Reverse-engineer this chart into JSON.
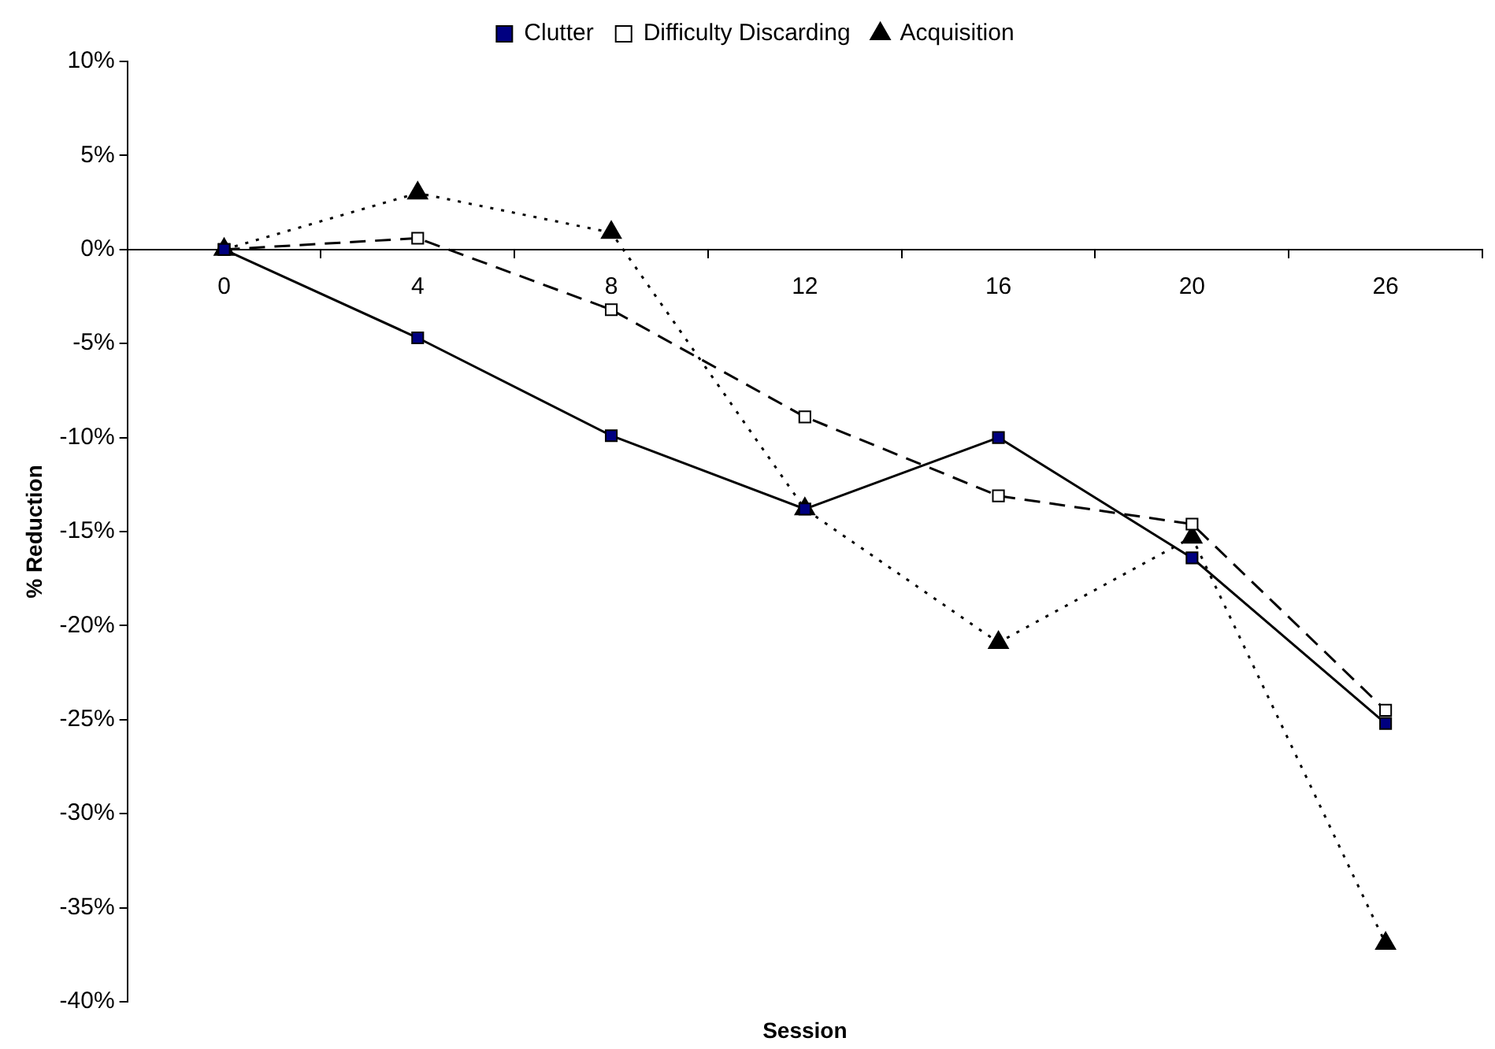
{
  "chart_data": {
    "type": "line",
    "xlabel": "Session",
    "ylabel": "% Reduction",
    "categories": [
      "0",
      "4",
      "8",
      "12",
      "16",
      "20",
      "26"
    ],
    "series": [
      {
        "name": "Clutter",
        "color": "#000080",
        "marker": "square",
        "line_style": "solid",
        "values": [
          0,
          -4.7,
          -9.9,
          -13.8,
          -10.0,
          -16.4,
          -25.2
        ]
      },
      {
        "name": "Difficulty Discarding",
        "color": "#ffffff",
        "marker": "square",
        "line_style": "dashed",
        "values": [
          0,
          0.6,
          -3.2,
          -8.9,
          -13.1,
          -14.6,
          -24.5
        ]
      },
      {
        "name": "Acquisition",
        "color": "#000000",
        "marker": "triangle",
        "line_style": "dotted",
        "values": [
          0,
          3.0,
          0.9,
          -13.8,
          -20.9,
          -15.3,
          -36.9
        ]
      }
    ],
    "ylim": [
      -40,
      10
    ],
    "yticks": [
      {
        "value": -40,
        "label": "-40%"
      },
      {
        "value": -35,
        "label": "-35%"
      },
      {
        "value": -30,
        "label": "-30%"
      },
      {
        "value": -25,
        "label": "-25%"
      },
      {
        "value": -20,
        "label": "-20%"
      },
      {
        "value": -15,
        "label": "-15%"
      },
      {
        "value": -10,
        "label": "-10%"
      },
      {
        "value": -5,
        "label": "-5%"
      },
      {
        "value": 0,
        "label": "0%"
      },
      {
        "value": 5,
        "label": "5%"
      },
      {
        "value": 10,
        "label": "10%"
      }
    ],
    "grid": false,
    "legend": "top"
  }
}
